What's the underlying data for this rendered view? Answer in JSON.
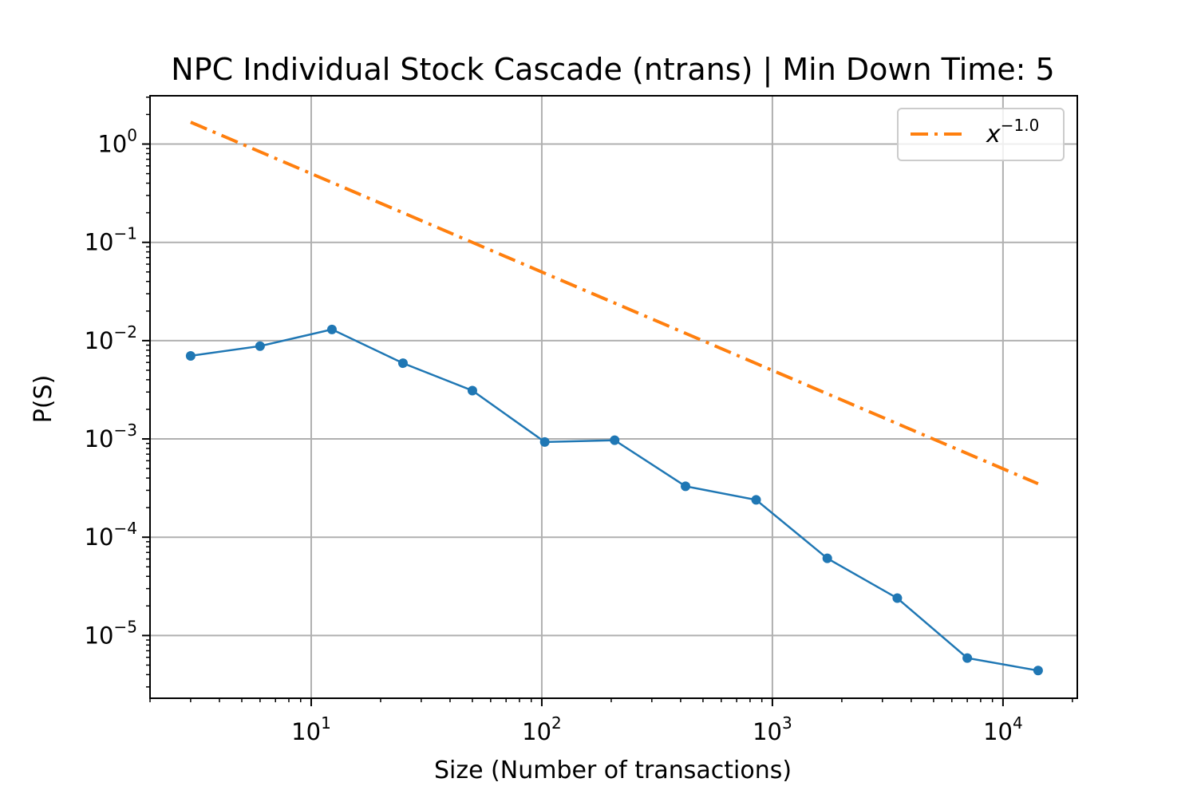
{
  "chart_data": {
    "type": "line",
    "title": "NPC Individual Stock Cascade (ntrans) | Min Down Time: 5",
    "xlabel": "Size (Number of transactions)",
    "ylabel": "P(S)",
    "xscale": "log",
    "yscale": "log",
    "xlim": [
      2,
      21000
    ],
    "ylim": [
      2.3e-06,
      3.1
    ],
    "grid": true,
    "legend_position": "top-right",
    "x_ticks": [
      {
        "value": 10,
        "base": "10",
        "exp": "1"
      },
      {
        "value": 100,
        "base": "10",
        "exp": "2"
      },
      {
        "value": 1000,
        "base": "10",
        "exp": "3"
      },
      {
        "value": 10000,
        "base": "10",
        "exp": "4"
      }
    ],
    "y_ticks": [
      {
        "value": 1,
        "base": "10",
        "exp": "0"
      },
      {
        "value": 0.1,
        "base": "10",
        "exp": "−1"
      },
      {
        "value": 0.01,
        "base": "10",
        "exp": "−2"
      },
      {
        "value": 0.001,
        "base": "10",
        "exp": "−3"
      },
      {
        "value": 0.0001,
        "base": "10",
        "exp": "−4"
      },
      {
        "value": 1e-05,
        "base": "10",
        "exp": "−5"
      }
    ],
    "series": [
      {
        "color": "#1f77b4",
        "style": "solid-with-markers",
        "x": [
          3,
          6,
          12.3,
          25,
          50,
          103,
          207,
          420,
          850,
          1730,
          3480,
          7000,
          14200
        ],
        "y": [
          0.007,
          0.0088,
          0.013,
          0.0059,
          0.0031,
          0.00093,
          0.00097,
          0.00033,
          0.00024,
          6.1e-05,
          2.4e-05,
          5.9e-06,
          4.4e-06
        ]
      },
      {
        "legend_base": "x",
        "legend_exp": "−1.0",
        "color": "#ff7f0e",
        "style": "dashdot",
        "x": [
          3,
          14200
        ],
        "y": [
          1.67,
          0.00035
        ]
      }
    ]
  }
}
